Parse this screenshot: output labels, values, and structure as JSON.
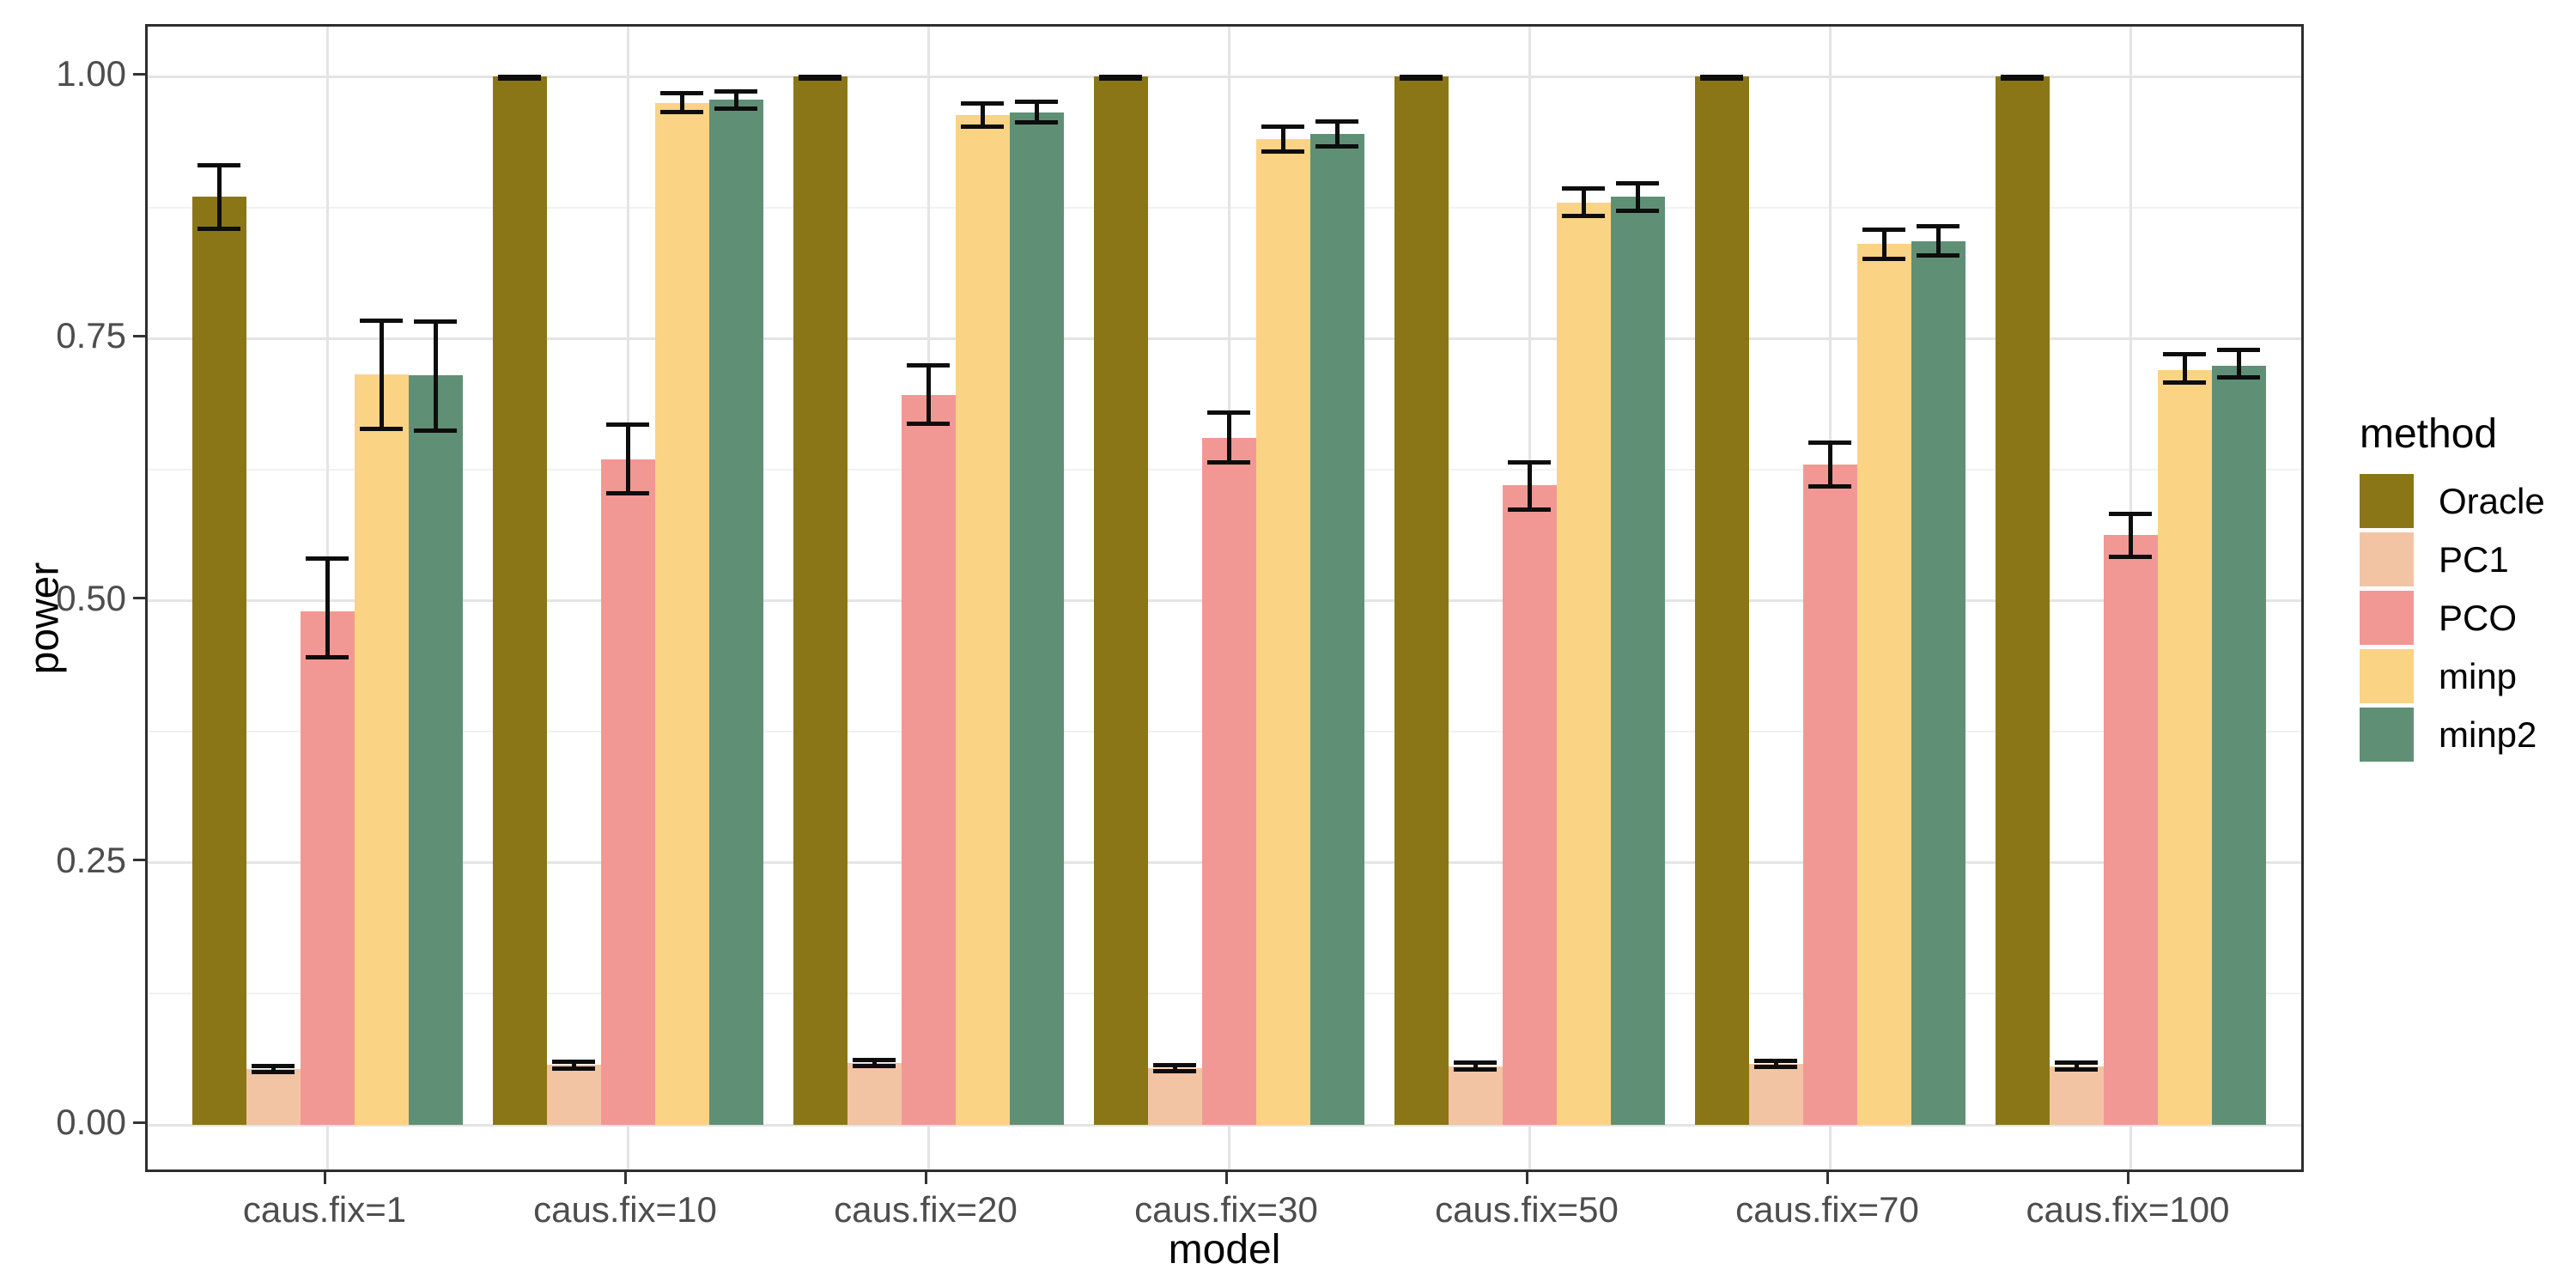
{
  "figure": {
    "background": "#ffffff",
    "panel_border_color": "#2e2e2e",
    "grid_major_color": "#e4e4e4",
    "grid_minor_color": "#f1f1f1",
    "error_bar_color": "#0d0d0d",
    "tick_mark_color": "#333333",
    "tick_label_color": "#4d4d4d",
    "axis_title_color": "#000000"
  },
  "chart_data": {
    "type": "bar",
    "title": "",
    "xlabel": "model",
    "ylabel": "power",
    "legend_title": "method",
    "legend_position": "right",
    "grid": "horizontal major at 0.25 steps + minor at 0.125 steps; vertical major at group centers",
    "ylim": [
      0,
      1
    ],
    "y_ticks": [
      {
        "value": 0.0,
        "label": "0.00"
      },
      {
        "value": 0.25,
        "label": "0.25"
      },
      {
        "value": 0.5,
        "label": "0.50"
      },
      {
        "value": 0.75,
        "label": "0.75"
      },
      {
        "value": 1.0,
        "label": "1.00"
      }
    ],
    "y_minor_ticks": [
      0.125,
      0.375,
      0.625,
      0.875
    ],
    "categories": [
      "caus.fix=1",
      "caus.fix=10",
      "caus.fix=20",
      "caus.fix=30",
      "caus.fix=50",
      "caus.fix=70",
      "caus.fix=100"
    ],
    "series": [
      {
        "name": "Oracle",
        "color": "#8a7617",
        "values": [
          0.885,
          1.0,
          1.0,
          1.0,
          1.0,
          1.0,
          1.0
        ],
        "ymin": [
          0.855,
          0.998,
          0.998,
          0.998,
          0.998,
          0.998,
          0.998
        ],
        "ymax": [
          0.915,
          1.0,
          1.0,
          1.0,
          1.0,
          1.0,
          1.0
        ]
      },
      {
        "name": "PC1",
        "color": "#f2c4a4",
        "values": [
          0.053,
          0.057,
          0.059,
          0.054,
          0.056,
          0.058,
          0.056
        ],
        "ymin": [
          0.05,
          0.054,
          0.056,
          0.051,
          0.053,
          0.055,
          0.053
        ],
        "ymax": [
          0.056,
          0.06,
          0.062,
          0.057,
          0.059,
          0.061,
          0.059
        ]
      },
      {
        "name": "PCO",
        "color": "#f29894",
        "values": [
          0.49,
          0.635,
          0.696,
          0.655,
          0.61,
          0.63,
          0.563
        ],
        "ymin": [
          0.446,
          0.602,
          0.669,
          0.632,
          0.587,
          0.609,
          0.542
        ],
        "ymax": [
          0.54,
          0.668,
          0.724,
          0.679,
          0.632,
          0.651,
          0.583
        ]
      },
      {
        "name": "minp",
        "color": "#fad385",
        "values": [
          0.716,
          0.975,
          0.963,
          0.94,
          0.88,
          0.84,
          0.72
        ],
        "ymin": [
          0.664,
          0.966,
          0.952,
          0.928,
          0.867,
          0.826,
          0.708
        ],
        "ymax": [
          0.767,
          0.984,
          0.974,
          0.952,
          0.893,
          0.854,
          0.735
        ]
      },
      {
        "name": "minp2",
        "color": "#5f9076",
        "values": [
          0.715,
          0.978,
          0.966,
          0.945,
          0.885,
          0.843,
          0.724
        ],
        "ymin": [
          0.662,
          0.969,
          0.956,
          0.933,
          0.872,
          0.829,
          0.713
        ],
        "ymax": [
          0.766,
          0.986,
          0.976,
          0.957,
          0.898,
          0.857,
          0.739
        ]
      }
    ]
  }
}
